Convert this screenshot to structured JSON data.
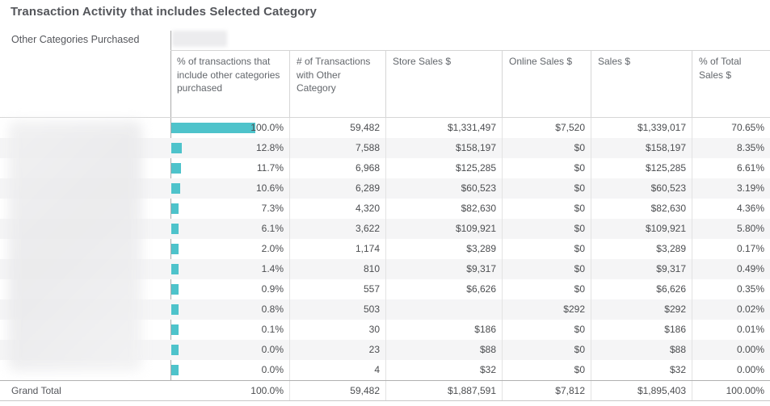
{
  "title": "Transaction Activity that includes Selected Category",
  "filter": {
    "label": "Other Categories Purchased"
  },
  "colors": {
    "bar_teal": "#4ec3cb",
    "row_band": "#f5f5f6",
    "title_text": "#54565b"
  },
  "chart_data": {
    "type": "table",
    "title": "Transaction Activity that includes Selected Category",
    "row_dimension": "Other Categories Purchased",
    "row_labels_blurred": true,
    "bar_column": "% of transactions that include other categories purchased",
    "bar_axis_range": [
      0,
      100
    ],
    "columns": [
      "% of transactions that include other categories purchased",
      "# of Transactions with Other Category",
      "Store Sales $",
      "Online Sales $",
      "Sales $",
      "% of Total Sales $"
    ],
    "rows": [
      {
        "pct": "100.0%",
        "pct_value": 100.0,
        "transactions": "59,482",
        "store": "$1,331,497",
        "online": "$7,520",
        "sales": "$1,339,017",
        "pct_total": "70.65%"
      },
      {
        "pct": "12.8%",
        "pct_value": 12.8,
        "transactions": "7,588",
        "store": "$158,197",
        "online": "$0",
        "sales": "$158,197",
        "pct_total": "8.35%"
      },
      {
        "pct": "11.7%",
        "pct_value": 11.7,
        "transactions": "6,968",
        "store": "$125,285",
        "online": "$0",
        "sales": "$125,285",
        "pct_total": "6.61%"
      },
      {
        "pct": "10.6%",
        "pct_value": 10.6,
        "transactions": "6,289",
        "store": "$60,523",
        "online": "$0",
        "sales": "$60,523",
        "pct_total": "3.19%"
      },
      {
        "pct": "7.3%",
        "pct_value": 7.3,
        "transactions": "4,320",
        "store": "$82,630",
        "online": "$0",
        "sales": "$82,630",
        "pct_total": "4.36%"
      },
      {
        "pct": "6.1%",
        "pct_value": 6.1,
        "transactions": "3,622",
        "store": "$109,921",
        "online": "$0",
        "sales": "$109,921",
        "pct_total": "5.80%"
      },
      {
        "pct": "2.0%",
        "pct_value": 2.0,
        "transactions": "1,174",
        "store": "$3,289",
        "online": "$0",
        "sales": "$3,289",
        "pct_total": "0.17%"
      },
      {
        "pct": "1.4%",
        "pct_value": 1.4,
        "transactions": "810",
        "store": "$9,317",
        "online": "$0",
        "sales": "$9,317",
        "pct_total": "0.49%"
      },
      {
        "pct": "0.9%",
        "pct_value": 0.9,
        "transactions": "557",
        "store": "$6,626",
        "online": "$0",
        "sales": "$6,626",
        "pct_total": "0.35%"
      },
      {
        "pct": "0.8%",
        "pct_value": 0.8,
        "transactions": "503",
        "store": "",
        "online": "$292",
        "sales": "$292",
        "pct_total": "0.02%"
      },
      {
        "pct": "0.1%",
        "pct_value": 0.1,
        "transactions": "30",
        "store": "$186",
        "online": "$0",
        "sales": "$186",
        "pct_total": "0.01%"
      },
      {
        "pct": "0.0%",
        "pct_value": 0.0,
        "transactions": "23",
        "store": "$88",
        "online": "$0",
        "sales": "$88",
        "pct_total": "0.00%"
      },
      {
        "pct": "0.0%",
        "pct_value": 0.0,
        "transactions": "4",
        "store": "$32",
        "online": "$0",
        "sales": "$32",
        "pct_total": "0.00%"
      }
    ],
    "grand_total": {
      "label": "Grand Total",
      "pct": "100.0%",
      "transactions": "59,482",
      "store": "$1,887,591",
      "online": "$7,812",
      "sales": "$1,895,403",
      "pct_total": "100.00%"
    }
  }
}
